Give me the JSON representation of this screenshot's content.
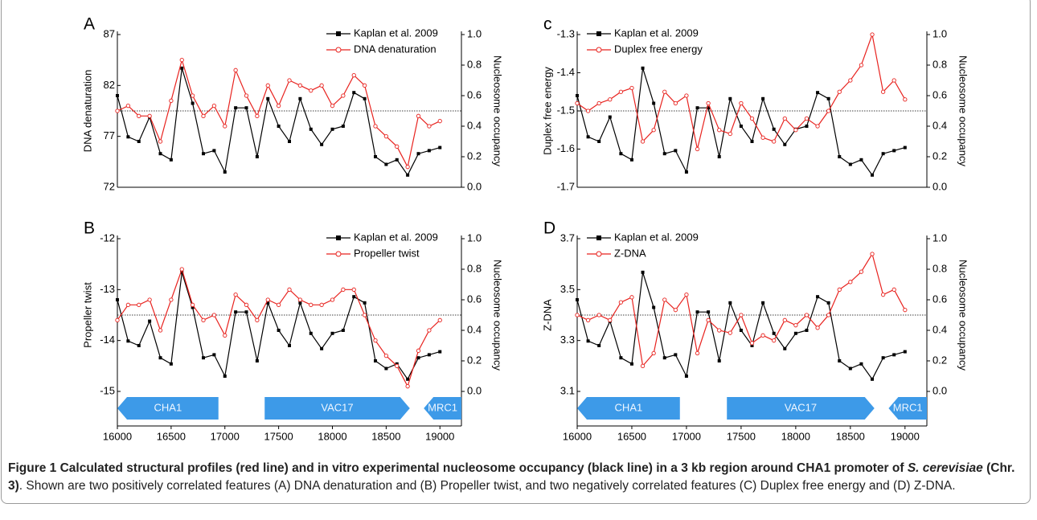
{
  "chart_data": [
    {
      "type": "line",
      "panel_label": "A",
      "ylabel": "DNA denaturation",
      "y2label": "Nucleosome occupancy",
      "xlim": [
        16000,
        19200
      ],
      "ylim": [
        72,
        87
      ],
      "yticks": [
        72,
        77,
        82,
        87
      ],
      "y2lim": [
        0,
        1
      ],
      "y2ticks": [
        {
          "value": 0,
          "label": "0.0"
        },
        0.2,
        0.4,
        0.6,
        0.8,
        {
          "value": 1,
          "label": "1.0"
        }
      ],
      "hline": 0.5,
      "legend": "upper right",
      "x": [
        16000,
        16100,
        16200,
        16300,
        16400,
        16500,
        16600,
        16700,
        16800,
        16900,
        17000,
        17100,
        17200,
        17300,
        17400,
        17500,
        17600,
        17700,
        17800,
        17900,
        18000,
        18100,
        18200,
        18300,
        18400,
        18500,
        18600,
        18700,
        18800,
        18900,
        19000
      ],
      "series": [
        {
          "name": "Kaplan et al. 2009",
          "color": "#000000",
          "marker": "square",
          "axis": "y2",
          "values": [
            0.6,
            0.33,
            0.3,
            0.46,
            0.22,
            0.18,
            0.78,
            0.55,
            0.22,
            0.24,
            0.1,
            0.52,
            0.52,
            0.2,
            0.58,
            0.4,
            0.3,
            0.58,
            0.38,
            0.28,
            0.38,
            0.4,
            0.62,
            0.58,
            0.2,
            0.15,
            0.18,
            0.08,
            0.22,
            0.24,
            0.26
          ]
        },
        {
          "name": "DNA denaturation",
          "color": "#e8231f",
          "marker": "circle",
          "values": [
            79.5,
            80,
            79,
            79,
            76.5,
            80.5,
            84.5,
            81,
            79,
            80,
            78,
            83.5,
            81,
            79,
            82,
            80,
            82.5,
            82,
            81.5,
            82,
            80,
            81,
            83,
            82,
            78,
            77,
            76,
            74,
            79,
            78,
            78.5
          ]
        }
      ]
    },
    {
      "type": "line",
      "panel_label": "B",
      "ylabel": "Propeller twist",
      "y2label": "Nucleosome occupancy",
      "xlim": [
        16000,
        19200
      ],
      "xticks": [
        16000,
        16500,
        17000,
        17500,
        18000,
        18500,
        19000
      ],
      "ylim": [
        -15,
        -12
      ],
      "yticks": [
        -15,
        -14,
        -13,
        -12
      ],
      "y2lim": [
        0,
        1
      ],
      "y2ticks": [
        {
          "value": 0,
          "label": "0.0"
        },
        0.2,
        0.4,
        0.6,
        0.8,
        {
          "value": 1,
          "label": "1.0"
        }
      ],
      "hline": 0.5,
      "legend": "upper right",
      "x": [
        16000,
        16100,
        16200,
        16300,
        16400,
        16500,
        16600,
        16700,
        16800,
        16900,
        17000,
        17100,
        17200,
        17300,
        17400,
        17500,
        17600,
        17700,
        17800,
        17900,
        18000,
        18100,
        18200,
        18300,
        18400,
        18500,
        18600,
        18700,
        18800,
        18900,
        19000
      ],
      "series": [
        {
          "name": "Kaplan et al. 2009",
          "color": "#000000",
          "marker": "square",
          "axis": "y2",
          "values": [
            0.6,
            0.33,
            0.3,
            0.46,
            0.22,
            0.18,
            0.78,
            0.55,
            0.22,
            0.24,
            0.1,
            0.52,
            0.52,
            0.2,
            0.58,
            0.4,
            0.3,
            0.58,
            0.38,
            0.28,
            0.38,
            0.4,
            0.62,
            0.58,
            0.2,
            0.15,
            0.18,
            0.08,
            0.22,
            0.24,
            0.26
          ]
        },
        {
          "name": "Propeller twist",
          "color": "#e8231f",
          "marker": "circle",
          "values": [
            -13.6,
            -13.3,
            -13.3,
            -13.2,
            -13.8,
            -13.2,
            -12.6,
            -13.3,
            -13.6,
            -13.5,
            -13.9,
            -13.1,
            -13.3,
            -13.6,
            -13.2,
            -13.3,
            -13.0,
            -13.2,
            -13.3,
            -13.3,
            -13.2,
            -13.0,
            -13.0,
            -13.5,
            -14.0,
            -14.3,
            -14.5,
            -14.9,
            -14.2,
            -13.8,
            -13.6
          ]
        }
      ],
      "genes": [
        {
          "label": "CHA1",
          "start": 16000,
          "end": 16940,
          "direction": "left"
        },
        {
          "label": "VAC17",
          "start": 17370,
          "end": 18720,
          "direction": "right"
        },
        {
          "label": "MRC1",
          "start": 18850,
          "end": 19200,
          "direction": "left"
        }
      ]
    },
    {
      "type": "line",
      "panel_label": "c",
      "ylabel": "Duplex free energy",
      "y2label": "Nucleosome occupancy",
      "xlim": [
        16000,
        19200
      ],
      "ylim": [
        -1.7,
        -1.3
      ],
      "yticks": [
        -1.7,
        -1.6,
        -1.5,
        -1.4,
        -1.3
      ],
      "y2lim": [
        0,
        1
      ],
      "y2ticks": [
        {
          "value": 0,
          "label": "0.0"
        },
        0.2,
        0.4,
        0.6,
        0.8,
        {
          "value": 1,
          "label": "1.0"
        }
      ],
      "hline": 0.5,
      "legend": "upper left",
      "x": [
        16000,
        16100,
        16200,
        16300,
        16400,
        16500,
        16600,
        16700,
        16800,
        16900,
        17000,
        17100,
        17200,
        17300,
        17400,
        17500,
        17600,
        17700,
        17800,
        17900,
        18000,
        18100,
        18200,
        18300,
        18400,
        18500,
        18600,
        18700,
        18800,
        18900,
        19000
      ],
      "series": [
        {
          "name": "Kaplan et al. 2009",
          "color": "#000000",
          "marker": "square",
          "axis": "y2",
          "values": [
            0.6,
            0.33,
            0.3,
            0.46,
            0.22,
            0.18,
            0.78,
            0.55,
            0.22,
            0.24,
            0.1,
            0.52,
            0.52,
            0.2,
            0.58,
            0.4,
            0.3,
            0.58,
            0.38,
            0.28,
            0.38,
            0.4,
            0.62,
            0.58,
            0.2,
            0.15,
            0.18,
            0.08,
            0.22,
            0.24,
            0.26
          ]
        },
        {
          "name": "Duplex free energy",
          "color": "#e8231f",
          "marker": "circle",
          "values": [
            -1.48,
            -1.5,
            -1.48,
            -1.47,
            -1.45,
            -1.44,
            -1.58,
            -1.55,
            -1.45,
            -1.48,
            -1.46,
            -1.6,
            -1.48,
            -1.55,
            -1.56,
            -1.48,
            -1.52,
            -1.57,
            -1.58,
            -1.52,
            -1.55,
            -1.52,
            -1.54,
            -1.5,
            -1.45,
            -1.42,
            -1.38,
            -1.3,
            -1.45,
            -1.42,
            -1.47
          ]
        }
      ]
    },
    {
      "type": "line",
      "panel_label": "D",
      "ylabel": "Z-DNA",
      "y2label": "Nucleosome occupancy",
      "xlim": [
        16000,
        19200
      ],
      "xticks": [
        16000,
        16500,
        17000,
        17500,
        18000,
        18500,
        19000
      ],
      "ylim": [
        3.1,
        3.7
      ],
      "yticks": [
        3.1,
        3.3,
        3.5,
        3.7
      ],
      "y2lim": [
        0,
        1
      ],
      "y2ticks": [
        {
          "value": 0,
          "label": "0.0"
        },
        0.2,
        0.4,
        0.6,
        0.8,
        {
          "value": 1,
          "label": "1.0"
        }
      ],
      "hline": 0.5,
      "legend": "upper left",
      "x": [
        16000,
        16100,
        16200,
        16300,
        16400,
        16500,
        16600,
        16700,
        16800,
        16900,
        17000,
        17100,
        17200,
        17300,
        17400,
        17500,
        17600,
        17700,
        17800,
        17900,
        18000,
        18100,
        18200,
        18300,
        18400,
        18500,
        18600,
        18700,
        18800,
        18900,
        19000
      ],
      "series": [
        {
          "name": "Kaplan et al. 2009",
          "color": "#000000",
          "marker": "square",
          "axis": "y2",
          "values": [
            0.6,
            0.33,
            0.3,
            0.46,
            0.22,
            0.18,
            0.78,
            0.55,
            0.22,
            0.24,
            0.1,
            0.52,
            0.52,
            0.2,
            0.58,
            0.4,
            0.3,
            0.58,
            0.38,
            0.28,
            0.38,
            0.4,
            0.62,
            0.58,
            0.2,
            0.15,
            0.18,
            0.08,
            0.22,
            0.24,
            0.26
          ]
        },
        {
          "name": "Z-DNA",
          "color": "#e8231f",
          "marker": "circle",
          "values": [
            3.4,
            3.38,
            3.4,
            3.38,
            3.45,
            3.47,
            3.2,
            3.25,
            3.46,
            3.42,
            3.48,
            3.25,
            3.38,
            3.34,
            3.33,
            3.4,
            3.29,
            3.32,
            3.3,
            3.38,
            3.36,
            3.4,
            3.35,
            3.4,
            3.5,
            3.53,
            3.57,
            3.64,
            3.48,
            3.5,
            3.42
          ]
        }
      ],
      "genes": [
        {
          "label": "CHA1",
          "start": 16000,
          "end": 16940,
          "direction": "left"
        },
        {
          "label": "VAC17",
          "start": 17370,
          "end": 18720,
          "direction": "right"
        },
        {
          "label": "MRC1",
          "start": 18850,
          "end": 19200,
          "direction": "left"
        }
      ]
    }
  ],
  "caption": {
    "bold": "Figure 1 Calculated structural profiles (red line) and in vitro experimental nucleosome occupancy (black line) in a 3 kb region around CHA1 promoter of ",
    "bold_italic": "S. cerevisiae",
    "bold_end": " (Chr. 3)",
    "text": ". Shown are two positively correlated features (A) DNA denaturation and (B) Propeller twist, and two negatively correlated features (C) Duplex free energy and (D) Z-DNA."
  }
}
